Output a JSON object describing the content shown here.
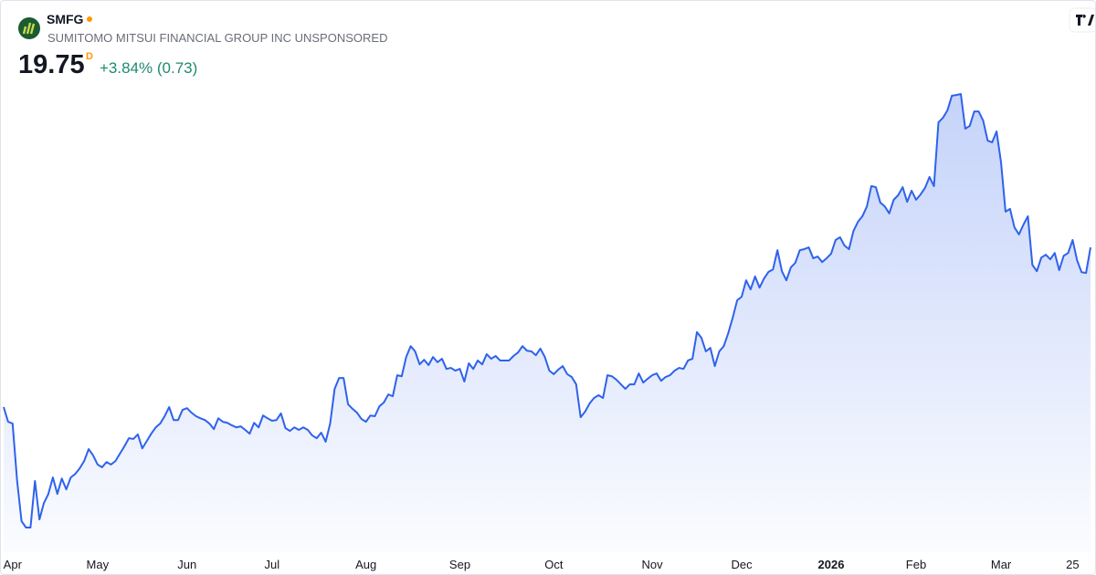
{
  "header": {
    "symbol": "SMFG",
    "name": "SUMITOMO MITSUI FINANCIAL GROUP INC UNSPONSORED",
    "price": "19.75",
    "interval": "D",
    "change": "+3.84% (0.73)"
  },
  "chart_data": {
    "type": "area",
    "color": "#2f62ec",
    "values": [
      15.19,
      14.77,
      14.72,
      13.1,
      11.93,
      11.75,
      11.75,
      13.08,
      11.98,
      12.45,
      12.71,
      13.18,
      12.71,
      13.15,
      12.84,
      13.18,
      13.28,
      13.44,
      13.65,
      13.99,
      13.81,
      13.55,
      13.47,
      13.62,
      13.55,
      13.65,
      13.86,
      14.07,
      14.3,
      14.28,
      14.41,
      14.01,
      14.22,
      14.43,
      14.61,
      14.72,
      14.93,
      15.19,
      14.82,
      14.82,
      15.11,
      15.16,
      15.03,
      14.93,
      14.87,
      14.82,
      14.72,
      14.56,
      14.87,
      14.77,
      14.74,
      14.67,
      14.61,
      14.64,
      14.54,
      14.43,
      14.74,
      14.61,
      14.95,
      14.87,
      14.8,
      14.82,
      15.01,
      14.59,
      14.51,
      14.61,
      14.54,
      14.61,
      14.54,
      14.38,
      14.3,
      14.46,
      14.2,
      14.72,
      15.71,
      16.02,
      16.02,
      15.27,
      15.14,
      15.03,
      14.85,
      14.77,
      14.95,
      14.93,
      15.21,
      15.32,
      15.55,
      15.5,
      16.1,
      16.07,
      16.62,
      16.93,
      16.78,
      16.41,
      16.54,
      16.39,
      16.62,
      16.47,
      16.57,
      16.28,
      16.31,
      16.23,
      16.28,
      15.92,
      16.44,
      16.28,
      16.52,
      16.41,
      16.7,
      16.57,
      16.65,
      16.52,
      16.52,
      16.52,
      16.65,
      16.75,
      16.93,
      16.8,
      16.78,
      16.67,
      16.86,
      16.62,
      16.23,
      16.13,
      16.26,
      16.36,
      16.13,
      16.05,
      15.84,
      14.9,
      15.06,
      15.29,
      15.45,
      15.53,
      15.45,
      16.1,
      16.07,
      15.97,
      15.84,
      15.71,
      15.84,
      15.84,
      16.15,
      15.89,
      16.0,
      16.1,
      16.15,
      15.94,
      16.05,
      16.1,
      16.23,
      16.31,
      16.28,
      16.52,
      16.57,
      17.33,
      17.17,
      16.78,
      16.88,
      16.36,
      16.78,
      16.93,
      17.3,
      17.74,
      18.24,
      18.34,
      18.81,
      18.55,
      18.92,
      18.6,
      18.86,
      19.05,
      19.12,
      19.67,
      19.07,
      18.81,
      19.18,
      19.31,
      19.67,
      19.7,
      19.75,
      19.44,
      19.49,
      19.33,
      19.44,
      19.57,
      19.96,
      20.04,
      19.8,
      19.7,
      20.22,
      20.48,
      20.64,
      20.92,
      21.5,
      21.47,
      21.03,
      20.92,
      20.72,
      21.11,
      21.24,
      21.47,
      21.05,
      21.37,
      21.11,
      21.26,
      21.45,
      21.76,
      21.5,
      23.32,
      23.45,
      23.66,
      24.08,
      24.1,
      24.13,
      23.14,
      23.22,
      23.63,
      23.63,
      23.37,
      22.8,
      22.75,
      23.06,
      22.17,
      20.77,
      20.85,
      20.32,
      20.12,
      20.4,
      20.64,
      19.25,
      19.07,
      19.46,
      19.54,
      19.41,
      19.59,
      19.1,
      19.51,
      19.59,
      19.96,
      19.38,
      19.04,
      19.02,
      19.75
    ],
    "xticks": [
      {
        "value": 2,
        "label": "Apr"
      },
      {
        "value": 21,
        "label": "May"
      },
      {
        "value": 41,
        "label": "Jun"
      },
      {
        "value": 60,
        "label": "Jul"
      },
      {
        "value": 81,
        "label": "Aug"
      },
      {
        "value": 102,
        "label": "Sep"
      },
      {
        "value": 123,
        "label": "Oct"
      },
      {
        "value": 145,
        "label": "Nov"
      },
      {
        "value": 165,
        "label": "Dec"
      },
      {
        "value": 185,
        "label": "2026"
      },
      {
        "value": 204,
        "label": "Feb"
      },
      {
        "value": 223,
        "label": "Mar"
      },
      {
        "value": 239,
        "label": "25"
      }
    ]
  }
}
